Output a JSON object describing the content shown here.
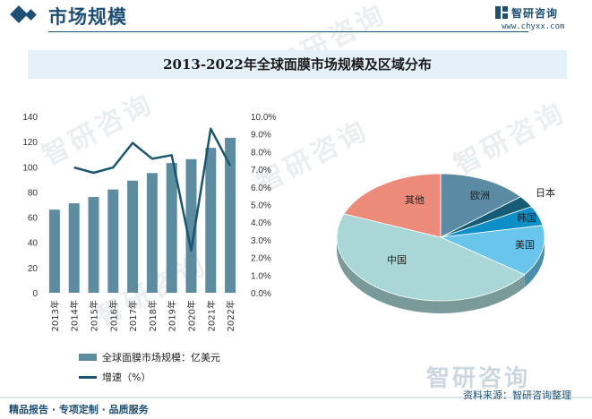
{
  "header": {
    "title": "市场规模",
    "brand_name": "智研咨询",
    "brand_url": "www.chyxx.com"
  },
  "colors": {
    "brand": "#1d4f74",
    "bar": "#5d8ca0",
    "line": "#1b5670",
    "title_band": "#e4f1f8"
  },
  "chart_title": "2013-2022年全球面膜市场规模及区域分布",
  "chart_data": [
    {
      "type": "bar",
      "categories": [
        "2013年",
        "2014年",
        "2015年",
        "2016年",
        "2017年",
        "2018年",
        "2019年",
        "2020年",
        "2021年",
        "2022年"
      ],
      "series": [
        {
          "name": "全球面膜市场规模：亿美元",
          "axis": "left",
          "type": "bar",
          "values": [
            66,
            71,
            76,
            82,
            89,
            95,
            103,
            106,
            115,
            123
          ]
        },
        {
          "name": "增速（%）",
          "axis": "right",
          "type": "line",
          "values": [
            null,
            7.1,
            6.8,
            7.1,
            8.5,
            7.6,
            7.8,
            2.4,
            9.3,
            7.2
          ]
        }
      ],
      "y_left": {
        "ticks": [
          0,
          20,
          40,
          60,
          80,
          100,
          120,
          140
        ],
        "ylim": [
          0,
          140
        ]
      },
      "y_right": {
        "ticks": [
          "0.0%",
          "1.0%",
          "2.0%",
          "3.0%",
          "4.0%",
          "5.0%",
          "6.0%",
          "7.0%",
          "8.0%",
          "9.0%",
          "10.0%"
        ],
        "ylim": [
          0,
          10
        ]
      },
      "legend": "bottom"
    },
    {
      "type": "pie",
      "slices": [
        {
          "label": "欧洲",
          "value": 14,
          "color": "#5a8aa4"
        },
        {
          "label": "日本",
          "value": 3,
          "color": "#155c74"
        },
        {
          "label": "韩国",
          "value": 5,
          "color": "#0f8fc8"
        },
        {
          "label": "美国",
          "value": 13,
          "color": "#6ac5ec"
        },
        {
          "label": "中国",
          "value": 46,
          "color": "#a9d6d6"
        },
        {
          "label": "其他",
          "value": 19,
          "color": "#ec8b79"
        }
      ]
    }
  ],
  "footer": {
    "left": "精品报告 · 专项定制 · 品质服务",
    "source": "资料来源：智研咨询整理"
  },
  "watermark": {
    "text": "智研咨询"
  }
}
